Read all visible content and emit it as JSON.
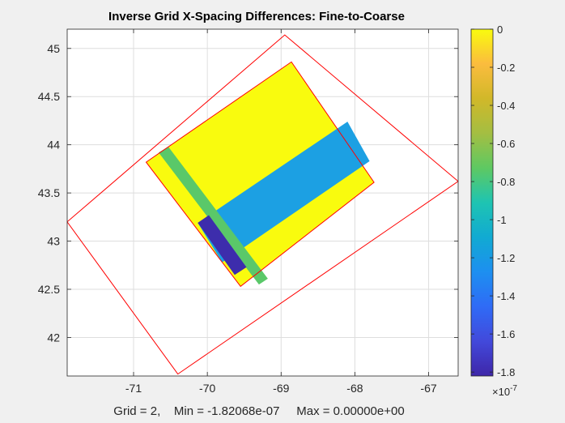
{
  "chart_data": {
    "type": "heatmap",
    "title": "Inverse Grid X-Spacing Differences: Fine-to-Coarse",
    "xlabel": "Grid = 2,    Min = -1.82068e-07     Max = 0.00000e+00",
    "ylabel": "",
    "xlim": [
      -71.9,
      -66.6
    ],
    "ylim": [
      41.6,
      45.2
    ],
    "xticks": [
      -71,
      -70,
      -69,
      -68,
      -67
    ],
    "xtick_labels": [
      "-71",
      "-70",
      "-69",
      "-68",
      "-67"
    ],
    "yticks": [
      42,
      42.5,
      43,
      43.5,
      44,
      44.5,
      45
    ],
    "ytick_labels": [
      "42",
      "42.5",
      "43",
      "43.5",
      "44",
      "44.5",
      "45"
    ],
    "grid": true,
    "colorbar": {
      "colormap": "parula",
      "clim": [
        -1.82068e-07,
        0
      ],
      "ticks": [
        0,
        -2e-08,
        -4e-08,
        -6e-08,
        -8e-08,
        -1e-07,
        -1.2e-07,
        -1.4e-07,
        -1.6e-07,
        -1.8e-07
      ],
      "tick_labels": [
        "0",
        "-0.2",
        "-0.4",
        "-0.6",
        "-0.8",
        "-1",
        "-1.2",
        "-1.4",
        "-1.6",
        "-1.8"
      ],
      "exponent_label": "×10",
      "exponent_power": "-7"
    },
    "outline_color": "#ff0000",
    "outlines": [
      {
        "name": "",
        "lonlat": [
          [
            -71.9,
            43.2
          ],
          [
            -68.95,
            45.14
          ],
          [
            -66.6,
            43.62
          ],
          [
            -70.4,
            41.62
          ]
        ]
      },
      {
        "name": "",
        "lonlat": [
          [
            -70.83,
            43.82
          ],
          [
            -68.86,
            44.86
          ],
          [
            -67.74,
            43.61
          ],
          [
            -69.55,
            42.53
          ]
        ]
      }
    ],
    "regions": [
      {
        "value": 0,
        "color": "#f9fb0e",
        "lonlat": [
          [
            -70.83,
            43.82
          ],
          [
            -68.86,
            44.86
          ],
          [
            -67.74,
            43.61
          ],
          [
            -69.55,
            42.53
          ]
        ]
      },
      {
        "value": -1.2e-07,
        "color": "#1ca0e3",
        "lonlat": [
          [
            -70.13,
            43.19
          ],
          [
            -68.1,
            44.24
          ],
          [
            -67.8,
            43.83
          ],
          [
            -69.8,
            42.78
          ]
        ]
      },
      {
        "value": -6e-08,
        "color": "#5ac869",
        "lonlat": [
          [
            -70.66,
            43.92
          ],
          [
            -70.53,
            43.98
          ],
          [
            -69.18,
            42.61
          ],
          [
            -69.3,
            42.55
          ]
        ]
      },
      {
        "value": -1.8e-07,
        "color": "#3d2dac",
        "lonlat": [
          [
            -70.13,
            43.19
          ],
          [
            -69.98,
            43.27
          ],
          [
            -69.47,
            42.73
          ],
          [
            -69.63,
            42.65
          ]
        ]
      }
    ]
  }
}
